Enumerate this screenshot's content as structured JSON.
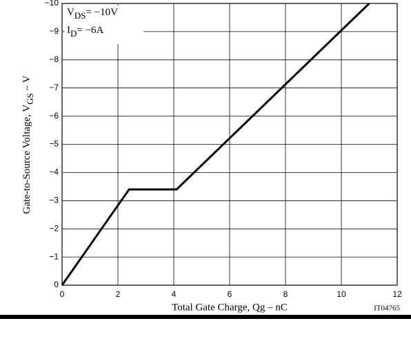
{
  "chart_data": {
    "type": "line",
    "x_label": {
      "before": "Total Gate Charge, Qg  –  nC"
    },
    "y_label": {
      "before": "Gate-to-Source Voltage, V",
      "sub": "GS",
      "after": "  –  V"
    },
    "annotations": [
      {
        "main": "V",
        "sub": "DS",
        "rest": "= −10V"
      },
      {
        "main": "I",
        "sub": "D",
        "rest": "= −6A"
      }
    ],
    "code": "IT04765",
    "x": [
      0,
      2.4,
      4.1,
      11
    ],
    "series": [
      {
        "color": "#000000",
        "values": [
          0,
          -3.4,
          -3.4,
          -10
        ]
      }
    ],
    "xlim": [
      0,
      12
    ],
    "xticks": [
      0,
      2,
      4,
      6,
      8,
      10,
      12
    ],
    "ylim": [
      0,
      -10
    ],
    "yticks": [
      {
        "value": 0,
        "label": "0"
      },
      {
        "value": -1,
        "label": "−1"
      },
      {
        "value": -2,
        "label": "−2"
      },
      {
        "value": -3,
        "label": "−3"
      },
      {
        "value": -4,
        "label": "−4"
      },
      {
        "value": -5,
        "label": "−5"
      },
      {
        "value": -6,
        "label": "−6"
      },
      {
        "value": -7,
        "label": "−7"
      },
      {
        "value": -8,
        "label": "−8"
      },
      {
        "value": -9,
        "label": "−9"
      },
      {
        "value": -10,
        "label": "−10"
      }
    ],
    "grid": true
  }
}
